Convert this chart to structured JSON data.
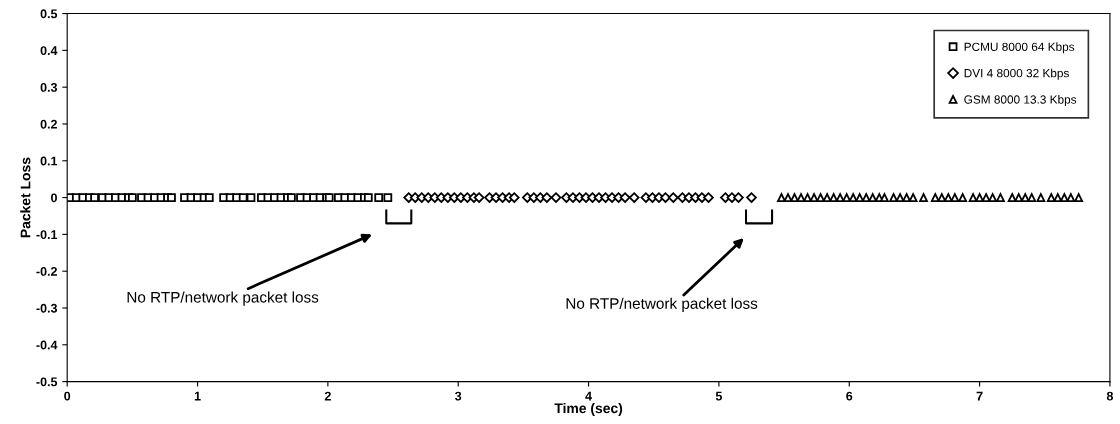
{
  "chart_data": {
    "type": "scatter",
    "xlabel": "Time (sec)",
    "ylabel": "Packet Loss",
    "xlim": [
      0,
      8
    ],
    "xticks": [
      0,
      1,
      2,
      3,
      4,
      5,
      6,
      7,
      8
    ],
    "ylim": [
      -0.5,
      0.5
    ],
    "yticks": [
      -0.5,
      -0.4,
      -0.3,
      -0.2,
      -0.1,
      0,
      0.1,
      0.2,
      0.3,
      0.4,
      0.5
    ],
    "grid": false,
    "legend": "top right",
    "series": [
      {
        "name": "PCMU 8000 64 Kbps",
        "color": "#000000",
        "marker": "square",
        "x": [
          0.02,
          0.07,
          0.12,
          0.17,
          0.21,
          0.27,
          0.32,
          0.37,
          0.42,
          0.47,
          0.5,
          0.57,
          0.62,
          0.67,
          0.72,
          0.77,
          0.8,
          0.9,
          0.95,
          1.0,
          1.05,
          1.09,
          1.2,
          1.25,
          1.3,
          1.35,
          1.41,
          1.49,
          1.54,
          1.59,
          1.64,
          1.69,
          1.72,
          1.79,
          1.84,
          1.89,
          1.94,
          1.99,
          2.01,
          2.08,
          2.13,
          2.18,
          2.23,
          2.28,
          2.31,
          2.39,
          2.46
        ],
        "values": [
          0,
          0,
          0,
          0,
          0,
          0,
          0,
          0,
          0,
          0,
          0,
          0,
          0,
          0,
          0,
          0,
          0,
          0,
          0,
          0,
          0,
          0,
          0,
          0,
          0,
          0,
          0,
          0,
          0,
          0,
          0,
          0,
          0,
          0,
          0,
          0,
          0,
          0,
          0,
          0,
          0,
          0,
          0,
          0,
          0,
          0,
          0
        ]
      },
      {
        "name": "DVI 4 8000 32 Kbps",
        "color": "#000000",
        "marker": "diamond",
        "x": [
          2.62,
          2.67,
          2.72,
          2.77,
          2.82,
          2.87,
          2.92,
          2.97,
          3.02,
          3.07,
          3.12,
          3.16,
          3.24,
          3.29,
          3.34,
          3.39,
          3.43,
          3.53,
          3.58,
          3.63,
          3.68,
          3.75,
          3.83,
          3.88,
          3.93,
          3.98,
          4.03,
          4.08,
          4.13,
          4.18,
          4.23,
          4.28,
          4.35,
          4.44,
          4.49,
          4.54,
          4.59,
          4.65,
          4.72,
          4.77,
          4.82,
          4.87,
          4.92,
          5.05,
          5.1,
          5.15,
          5.25
        ],
        "values": [
          0,
          0,
          0,
          0,
          0,
          0,
          0,
          0,
          0,
          0,
          0,
          0,
          0,
          0,
          0,
          0,
          0,
          0,
          0,
          0,
          0,
          0,
          0,
          0,
          0,
          0,
          0,
          0,
          0,
          0,
          0,
          0,
          0,
          0,
          0,
          0,
          0,
          0,
          0,
          0,
          0,
          0,
          0,
          0,
          0,
          0,
          0
        ]
      },
      {
        "name": "GSM 8000 13.3 Kbps",
        "color": "#000000",
        "marker": "triangle",
        "x": [
          5.48,
          5.53,
          5.58,
          5.63,
          5.68,
          5.73,
          5.78,
          5.83,
          5.88,
          5.93,
          5.98,
          6.03,
          6.08,
          6.13,
          6.18,
          6.23,
          6.27,
          6.34,
          6.39,
          6.44,
          6.49,
          6.57,
          6.66,
          6.71,
          6.76,
          6.81,
          6.87,
          6.95,
          7.0,
          7.05,
          7.1,
          7.16,
          7.25,
          7.3,
          7.35,
          7.4,
          7.47,
          7.55,
          7.6,
          7.65,
          7.7,
          7.76
        ],
        "values": [
          0,
          0,
          0,
          0,
          0,
          0,
          0,
          0,
          0,
          0,
          0,
          0,
          0,
          0,
          0,
          0,
          0,
          0,
          0,
          0,
          0,
          0,
          0,
          0,
          0,
          0,
          0,
          0,
          0,
          0,
          0,
          0,
          0,
          0,
          0,
          0,
          0,
          0,
          0,
          0,
          0,
          0
        ]
      }
    ],
    "annotations": [
      "No RTP/network packet loss",
      "No RTP/network packet loss"
    ]
  }
}
